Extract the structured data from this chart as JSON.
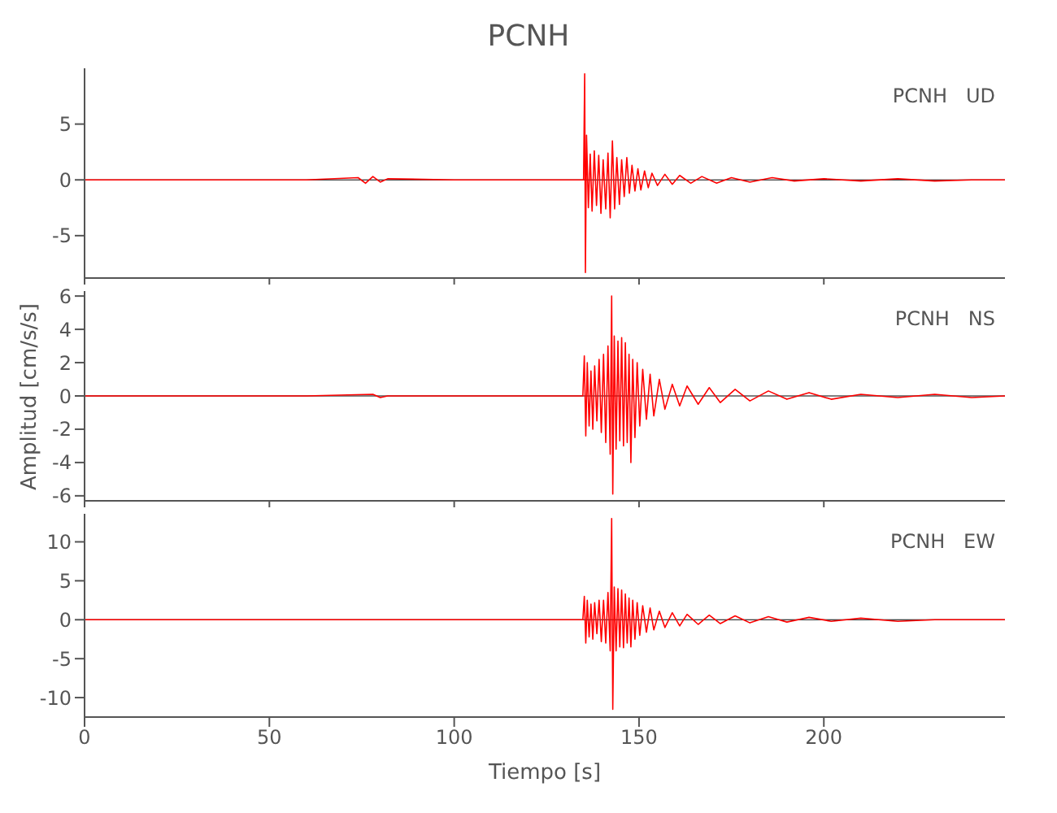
{
  "chart_data": [
    {
      "type": "line",
      "title": "PCNH",
      "annotations": [
        "PCNH   UD"
      ],
      "tick_labels": "y",
      "legend": false,
      "marker": "none",
      "line_style": "solid",
      "x": [
        0,
        20,
        40,
        60,
        74,
        76,
        78,
        80,
        82,
        100,
        120,
        135,
        135.3,
        135.5,
        135.8,
        136.3,
        136.8,
        137.3,
        137.9,
        138.5,
        139.1,
        139.7,
        140.3,
        141,
        141.6,
        142.2,
        142.8,
        143.4,
        144,
        144.7,
        145.3,
        146,
        146.7,
        147.4,
        148.1,
        148.9,
        149.7,
        150.5,
        151.5,
        152.5,
        153.5,
        155,
        157,
        159,
        161,
        164,
        167,
        171,
        175,
        180,
        186,
        192,
        200,
        210,
        220,
        230,
        240,
        249
      ],
      "series": [
        {
          "color": "#ff0000",
          "values": [
            0,
            0,
            0,
            0,
            0.2,
            -0.3,
            0.3,
            -0.2,
            0.1,
            0,
            0,
            0,
            9.5,
            -8.3,
            4,
            -2.5,
            2.3,
            -2.8,
            2.6,
            -2.3,
            2.2,
            -3,
            1.8,
            -2.6,
            2.4,
            -3.4,
            3.5,
            -2.6,
            2,
            -2.2,
            1.8,
            -1.5,
            2,
            -1.2,
            1.3,
            -1,
            1,
            -0.9,
            0.8,
            -0.7,
            0.6,
            -0.5,
            0.5,
            -0.4,
            0.4,
            -0.3,
            0.3,
            -0.3,
            0.2,
            -0.2,
            0.2,
            -0.1,
            0.1,
            -0.1,
            0.1,
            -0.1,
            0,
            0
          ]
        }
      ],
      "xlim": [
        0,
        249
      ],
      "xticks": [
        0,
        50,
        100,
        150,
        200
      ],
      "ylim": [
        -8.8,
        10
      ],
      "yticks": [
        -5,
        0,
        5
      ],
      "ref_lines": [
        {
          "axis": "y",
          "value": 0,
          "color": "#000000"
        }
      ]
    },
    {
      "type": "line",
      "ylabel": "Amplitud [cm/s/s]",
      "annotations": [
        "PCNH   NS"
      ],
      "tick_labels": "y",
      "legend": false,
      "marker": "none",
      "line_style": "solid",
      "x": [
        0,
        30,
        60,
        78,
        80,
        82,
        100,
        120,
        134.8,
        135.2,
        135.6,
        136,
        136.5,
        137,
        137.5,
        138,
        138.6,
        139.2,
        139.8,
        140.4,
        141,
        141.6,
        142.2,
        142.6,
        142.9,
        143.3,
        143.8,
        144.3,
        144.8,
        145.3,
        145.8,
        146.3,
        146.8,
        147.3,
        147.8,
        148.3,
        148.9,
        149.5,
        150.2,
        151,
        152,
        153,
        154,
        155.5,
        157,
        159,
        161,
        163,
        166,
        169,
        172,
        176,
        180,
        185,
        190,
        196,
        202,
        210,
        220,
        230,
        240,
        249
      ],
      "series": [
        {
          "color": "#ff0000",
          "values": [
            0,
            0,
            0,
            0.1,
            -0.1,
            0,
            0,
            0,
            0,
            2.4,
            -2.4,
            2,
            -1.8,
            1.5,
            -2,
            1.8,
            -1.5,
            2.2,
            -2.2,
            2.5,
            -2.8,
            3,
            -3.5,
            6,
            -5.9,
            3.6,
            -3.2,
            3.3,
            -2.7,
            3.5,
            -3,
            3.2,
            -2.8,
            2.5,
            -4,
            2.2,
            -2.5,
            2,
            -1.8,
            1.6,
            -1.4,
            1.3,
            -1.2,
            1,
            -0.8,
            0.7,
            -0.6,
            0.6,
            -0.5,
            0.5,
            -0.4,
            0.4,
            -0.3,
            0.3,
            -0.2,
            0.2,
            -0.2,
            0.1,
            -0.1,
            0.1,
            -0.1,
            0
          ]
        }
      ],
      "xlim": [
        0,
        249
      ],
      "xticks": [
        0,
        50,
        100,
        150,
        200
      ],
      "ylim": [
        -6.3,
        6.3
      ],
      "yticks": [
        -6,
        -4,
        -2,
        0,
        2,
        4,
        6
      ],
      "ref_lines": [
        {
          "axis": "y",
          "value": 0,
          "color": "#000000"
        }
      ]
    },
    {
      "type": "line",
      "xlabel": "Tiempo [s]",
      "annotations": [
        "PCNH   EW"
      ],
      "legend": false,
      "marker": "none",
      "line_style": "solid",
      "x": [
        0,
        30,
        60,
        78,
        80,
        82,
        100,
        120,
        134.8,
        135.2,
        135.6,
        136,
        136.5,
        137,
        137.5,
        138,
        138.6,
        139.2,
        139.8,
        140.4,
        141,
        141.6,
        142.2,
        142.6,
        142.9,
        143.3,
        143.8,
        144.3,
        144.8,
        145.3,
        145.8,
        146.3,
        146.8,
        147.3,
        147.8,
        148.3,
        148.9,
        149.5,
        150.2,
        151,
        152,
        153,
        154,
        155.5,
        157,
        159,
        161,
        163,
        166,
        169,
        172,
        176,
        180,
        185,
        190,
        196,
        202,
        210,
        220,
        230,
        240,
        249
      ],
      "series": [
        {
          "color": "#ff0000",
          "values": [
            0,
            0,
            0,
            0,
            0,
            0,
            0,
            0,
            0,
            3,
            -3,
            2.5,
            -2.2,
            2,
            -2.5,
            2.2,
            -1.8,
            2.5,
            -2.8,
            2.5,
            -3,
            3.5,
            -4,
            13,
            -11.5,
            4.2,
            -4,
            4,
            -3.5,
            3.8,
            -3.6,
            3.3,
            -3,
            2.8,
            -3.5,
            2.5,
            -2.5,
            2.2,
            -2,
            1.8,
            -1.6,
            1.5,
            -1.3,
            1.1,
            -1,
            0.9,
            -0.8,
            0.7,
            -0.6,
            0.6,
            -0.5,
            0.5,
            -0.4,
            0.4,
            -0.3,
            0.3,
            -0.2,
            0.2,
            -0.2,
            0,
            0,
            0
          ]
        }
      ],
      "xlim": [
        0,
        249
      ],
      "xticks": [
        0,
        50,
        100,
        150,
        200
      ],
      "ylim": [
        -12.5,
        13.6
      ],
      "yticks": [
        -10,
        -5,
        0,
        5,
        10
      ],
      "ref_lines": [
        {
          "axis": "y",
          "value": 0,
          "color": "#000000"
        }
      ]
    }
  ]
}
